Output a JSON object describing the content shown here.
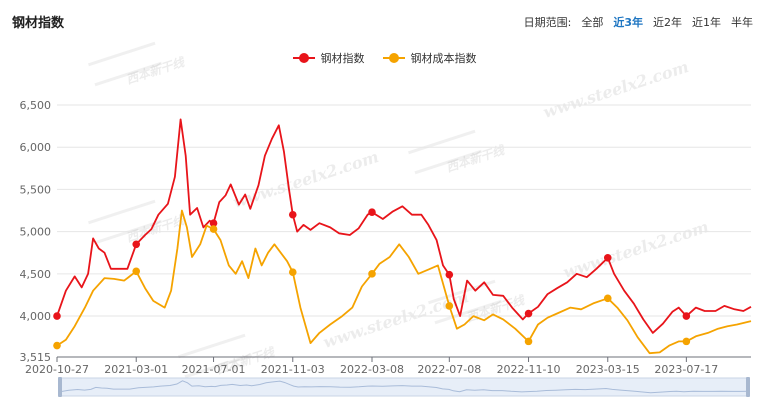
{
  "title": "钢材指数",
  "range_selector": {
    "label": "日期范围:",
    "options": [
      "全部",
      "近3年",
      "近2年",
      "近1年",
      "半年"
    ],
    "active": "近3年"
  },
  "watermark": {
    "site": "www.steelx2.com",
    "logo_text": "西本新干线"
  },
  "chart_data": {
    "type": "line",
    "title": "",
    "xlabel": "",
    "ylabel": "",
    "legend": "top-center",
    "grid": "horizontal",
    "ylim": [
      3515,
      6500
    ],
    "yticks": [
      {
        "value": 3515,
        "label": "3,515"
      },
      {
        "value": 4000,
        "label": "4,000"
      },
      {
        "value": 4500,
        "label": "4,500"
      },
      {
        "value": 5000,
        "label": "5,000"
      },
      {
        "value": 5500,
        "label": "5,500"
      },
      {
        "value": 6000,
        "label": "6,000"
      },
      {
        "value": 6500,
        "label": "6,500"
      }
    ],
    "xlim": [
      "2020-10-27",
      "2023-10-27"
    ],
    "xticks": [
      "2020-10-27",
      "2021-03-01",
      "2021-07-01",
      "2021-11-03",
      "2022-03-08",
      "2022-07-08",
      "2022-11-10",
      "2023-03-15",
      "2023-07-17"
    ],
    "series": [
      {
        "name": "钢材指数",
        "color": "#e8141a",
        "points": [
          [
            "2020-10-27",
            4000
          ],
          [
            "2020-11-10",
            4300
          ],
          [
            "2020-11-24",
            4470
          ],
          [
            "2020-12-05",
            4340
          ],
          [
            "2020-12-15",
            4500
          ],
          [
            "2020-12-23",
            4920
          ],
          [
            "2021-01-01",
            4800
          ],
          [
            "2021-01-10",
            4750
          ],
          [
            "2021-01-20",
            4560
          ],
          [
            "2021-02-01",
            4560
          ],
          [
            "2021-02-15",
            4560
          ],
          [
            "2021-03-01",
            4850
          ],
          [
            "2021-03-15",
            4960
          ],
          [
            "2021-03-25",
            5030
          ],
          [
            "2021-04-05",
            5200
          ],
          [
            "2021-04-20",
            5330
          ],
          [
            "2021-05-01",
            5650
          ],
          [
            "2021-05-10",
            6330
          ],
          [
            "2021-05-18",
            5900
          ],
          [
            "2021-05-25",
            5200
          ],
          [
            "2021-06-05",
            5280
          ],
          [
            "2021-06-15",
            5050
          ],
          [
            "2021-06-25",
            5130
          ],
          [
            "2021-07-01",
            5100
          ],
          [
            "2021-07-10",
            5350
          ],
          [
            "2021-07-20",
            5430
          ],
          [
            "2021-07-28",
            5560
          ],
          [
            "2021-08-10",
            5320
          ],
          [
            "2021-08-20",
            5440
          ],
          [
            "2021-08-28",
            5270
          ],
          [
            "2021-09-10",
            5550
          ],
          [
            "2021-09-20",
            5900
          ],
          [
            "2021-10-01",
            6100
          ],
          [
            "2021-10-12",
            6260
          ],
          [
            "2021-10-20",
            5950
          ],
          [
            "2021-10-28",
            5500
          ],
          [
            "2021-11-03",
            5200
          ],
          [
            "2021-11-10",
            5000
          ],
          [
            "2021-11-20",
            5080
          ],
          [
            "2021-12-01",
            5020
          ],
          [
            "2021-12-15",
            5100
          ],
          [
            "2022-01-01",
            5050
          ],
          [
            "2022-01-15",
            4980
          ],
          [
            "2022-02-01",
            4960
          ],
          [
            "2022-02-15",
            5040
          ],
          [
            "2022-03-01",
            5200
          ],
          [
            "2022-03-08",
            5230
          ],
          [
            "2022-03-25",
            5150
          ],
          [
            "2022-04-10",
            5240
          ],
          [
            "2022-04-25",
            5300
          ],
          [
            "2022-05-10",
            5200
          ],
          [
            "2022-05-25",
            5200
          ],
          [
            "2022-06-05",
            5080
          ],
          [
            "2022-06-18",
            4900
          ],
          [
            "2022-06-28",
            4600
          ],
          [
            "2022-07-08",
            4490
          ],
          [
            "2022-07-15",
            4200
          ],
          [
            "2022-07-25",
            4000
          ],
          [
            "2022-08-05",
            4420
          ],
          [
            "2022-08-18",
            4300
          ],
          [
            "2022-09-01",
            4400
          ],
          [
            "2022-09-15",
            4250
          ],
          [
            "2022-10-01",
            4240
          ],
          [
            "2022-10-15",
            4100
          ],
          [
            "2022-11-01",
            3960
          ],
          [
            "2022-11-10",
            4030
          ],
          [
            "2022-11-25",
            4110
          ],
          [
            "2022-12-10",
            4260
          ],
          [
            "2022-12-25",
            4330
          ],
          [
            "2023-01-10",
            4400
          ],
          [
            "2023-01-25",
            4500
          ],
          [
            "2023-02-10",
            4460
          ],
          [
            "2023-02-25",
            4560
          ],
          [
            "2023-03-15",
            4690
          ],
          [
            "2023-03-25",
            4500
          ],
          [
            "2023-04-10",
            4300
          ],
          [
            "2023-04-25",
            4150
          ],
          [
            "2023-05-10",
            3960
          ],
          [
            "2023-05-25",
            3800
          ],
          [
            "2023-06-10",
            3910
          ],
          [
            "2023-06-25",
            4050
          ],
          [
            "2023-07-05",
            4100
          ],
          [
            "2023-07-17",
            4000
          ],
          [
            "2023-08-01",
            4100
          ],
          [
            "2023-08-15",
            4060
          ],
          [
            "2023-09-01",
            4060
          ],
          [
            "2023-09-15",
            4120
          ],
          [
            "2023-10-01",
            4080
          ],
          [
            "2023-10-15",
            4060
          ],
          [
            "2023-10-27",
            4110
          ]
        ],
        "markers": [
          [
            "2020-10-27",
            4000
          ],
          [
            "2021-03-01",
            4850
          ],
          [
            "2021-07-01",
            5100
          ],
          [
            "2021-11-03",
            5200
          ],
          [
            "2022-03-08",
            5230
          ],
          [
            "2022-07-08",
            4490
          ],
          [
            "2022-11-10",
            4030
          ],
          [
            "2023-03-15",
            4690
          ],
          [
            "2023-07-17",
            4000
          ]
        ]
      },
      {
        "name": "钢材成本指数",
        "color": "#f5a300",
        "points": [
          [
            "2020-10-27",
            3650
          ],
          [
            "2020-11-10",
            3720
          ],
          [
            "2020-11-24",
            3880
          ],
          [
            "2020-12-10",
            4100
          ],
          [
            "2020-12-23",
            4300
          ],
          [
            "2021-01-10",
            4450
          ],
          [
            "2021-01-25",
            4440
          ],
          [
            "2021-02-10",
            4420
          ],
          [
            "2021-03-01",
            4530
          ],
          [
            "2021-03-15",
            4330
          ],
          [
            "2021-03-28",
            4180
          ],
          [
            "2021-04-15",
            4100
          ],
          [
            "2021-04-25",
            4300
          ],
          [
            "2021-05-05",
            4800
          ],
          [
            "2021-05-12",
            5250
          ],
          [
            "2021-05-20",
            5050
          ],
          [
            "2021-05-28",
            4700
          ],
          [
            "2021-06-10",
            4850
          ],
          [
            "2021-06-20",
            5070
          ],
          [
            "2021-07-01",
            5030
          ],
          [
            "2021-07-12",
            4900
          ],
          [
            "2021-07-25",
            4600
          ],
          [
            "2021-08-05",
            4500
          ],
          [
            "2021-08-15",
            4650
          ],
          [
            "2021-08-25",
            4450
          ],
          [
            "2021-09-05",
            4800
          ],
          [
            "2021-09-15",
            4600
          ],
          [
            "2021-09-25",
            4750
          ],
          [
            "2021-10-05",
            4850
          ],
          [
            "2021-10-15",
            4750
          ],
          [
            "2021-10-25",
            4650
          ],
          [
            "2021-11-03",
            4520
          ],
          [
            "2021-11-15",
            4100
          ],
          [
            "2021-12-01",
            3680
          ],
          [
            "2021-12-15",
            3800
          ],
          [
            "2022-01-01",
            3900
          ],
          [
            "2022-01-20",
            4000
          ],
          [
            "2022-02-05",
            4100
          ],
          [
            "2022-02-20",
            4350
          ],
          [
            "2022-03-08",
            4500
          ],
          [
            "2022-03-20",
            4620
          ],
          [
            "2022-04-05",
            4700
          ],
          [
            "2022-04-20",
            4850
          ],
          [
            "2022-05-05",
            4700
          ],
          [
            "2022-05-20",
            4500
          ],
          [
            "2022-06-05",
            4550
          ],
          [
            "2022-06-20",
            4600
          ],
          [
            "2022-07-08",
            4120
          ],
          [
            "2022-07-20",
            3850
          ],
          [
            "2022-08-01",
            3900
          ],
          [
            "2022-08-15",
            4000
          ],
          [
            "2022-09-01",
            3950
          ],
          [
            "2022-09-15",
            4020
          ],
          [
            "2022-10-01",
            3960
          ],
          [
            "2022-10-20",
            3850
          ],
          [
            "2022-11-10",
            3700
          ],
          [
            "2022-11-25",
            3900
          ],
          [
            "2022-12-10",
            3980
          ],
          [
            "2022-12-25",
            4030
          ],
          [
            "2023-01-15",
            4100
          ],
          [
            "2023-02-01",
            4080
          ],
          [
            "2023-02-20",
            4150
          ],
          [
            "2023-03-15",
            4210
          ],
          [
            "2023-03-30",
            4100
          ],
          [
            "2023-04-15",
            3950
          ],
          [
            "2023-05-01",
            3750
          ],
          [
            "2023-05-20",
            3560
          ],
          [
            "2023-06-05",
            3570
          ],
          [
            "2023-06-20",
            3650
          ],
          [
            "2023-07-05",
            3700
          ],
          [
            "2023-07-17",
            3700
          ],
          [
            "2023-08-01",
            3760
          ],
          [
            "2023-08-20",
            3800
          ],
          [
            "2023-09-05",
            3850
          ],
          [
            "2023-09-20",
            3880
          ],
          [
            "2023-10-05",
            3900
          ],
          [
            "2023-10-27",
            3940
          ]
        ],
        "markers": [
          [
            "2020-10-27",
            3650
          ],
          [
            "2021-03-01",
            4530
          ],
          [
            "2021-07-01",
            5030
          ],
          [
            "2021-11-03",
            4520
          ],
          [
            "2022-03-08",
            4500
          ],
          [
            "2022-07-08",
            4120
          ],
          [
            "2022-11-10",
            3700
          ],
          [
            "2023-03-15",
            4210
          ],
          [
            "2023-07-17",
            3700
          ]
        ]
      }
    ]
  }
}
